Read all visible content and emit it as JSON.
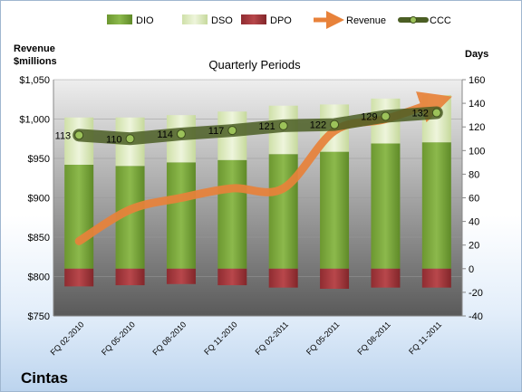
{
  "chart_data": {
    "type": "bar",
    "title": "Quarterly Periods",
    "company": "Cintas",
    "left_axis_title": [
      "Revenue",
      "$millions"
    ],
    "right_axis_title": "Days",
    "left_axis": {
      "ylim": [
        750,
        1050
      ],
      "ticks": [
        750,
        800,
        850,
        900,
        950,
        1000,
        1050
      ],
      "tick_labels": [
        "$750",
        "$800",
        "$850",
        "$900",
        "$950",
        "$1,000",
        "$1,050"
      ]
    },
    "right_axis": {
      "ylim": [
        -40,
        160
      ],
      "ticks": [
        -40,
        -20,
        0,
        20,
        40,
        60,
        80,
        100,
        120,
        140,
        160
      ],
      "tick_labels": [
        "-40",
        "-20",
        "0",
        "20",
        "40",
        "60",
        "80",
        "100",
        "120",
        "140",
        "160"
      ]
    },
    "categories": [
      "FQ 02-2010",
      "FQ 05-2010",
      "FQ 08-2010",
      "FQ 11-2010",
      "FQ 02-2011",
      "FQ 05-2011",
      "FQ 08-2011",
      "FQ 11-2011"
    ],
    "legend": [
      {
        "name": "DIO",
        "kind": "bar",
        "color": "#77a33a"
      },
      {
        "name": "DSO",
        "kind": "bar",
        "color": "#dbe9bc"
      },
      {
        "name": "DPO",
        "kind": "bar",
        "color": "#a2373b"
      },
      {
        "name": "Revenue",
        "kind": "arrow",
        "color": "#e8823a"
      },
      {
        "name": "CCC",
        "kind": "line",
        "color": "#4b5e24"
      }
    ],
    "series": [
      {
        "name": "DIO",
        "axis": "right",
        "values": [
          88,
          87,
          90,
          92,
          97,
          99,
          106,
          107
        ]
      },
      {
        "name": "DSO",
        "axis": "right",
        "values": [
          40,
          41,
          40,
          41,
          41,
          40,
          38,
          40
        ]
      },
      {
        "name": "DPO",
        "axis": "right",
        "values": [
          -15,
          -14,
          -13,
          -14,
          -16,
          -17,
          -16,
          -16
        ]
      },
      {
        "name": "Revenue",
        "axis": "left",
        "values": [
          845,
          885,
          900,
          912,
          912,
          985,
          1000,
          1022
        ]
      },
      {
        "name": "CCC",
        "axis": "right",
        "values": [
          113,
          110,
          114,
          117,
          121,
          122,
          129,
          132
        ],
        "labels": [
          "113",
          "110",
          "114",
          "117",
          "121",
          "122",
          "129",
          "132"
        ]
      }
    ],
    "legend_position": "top"
  }
}
